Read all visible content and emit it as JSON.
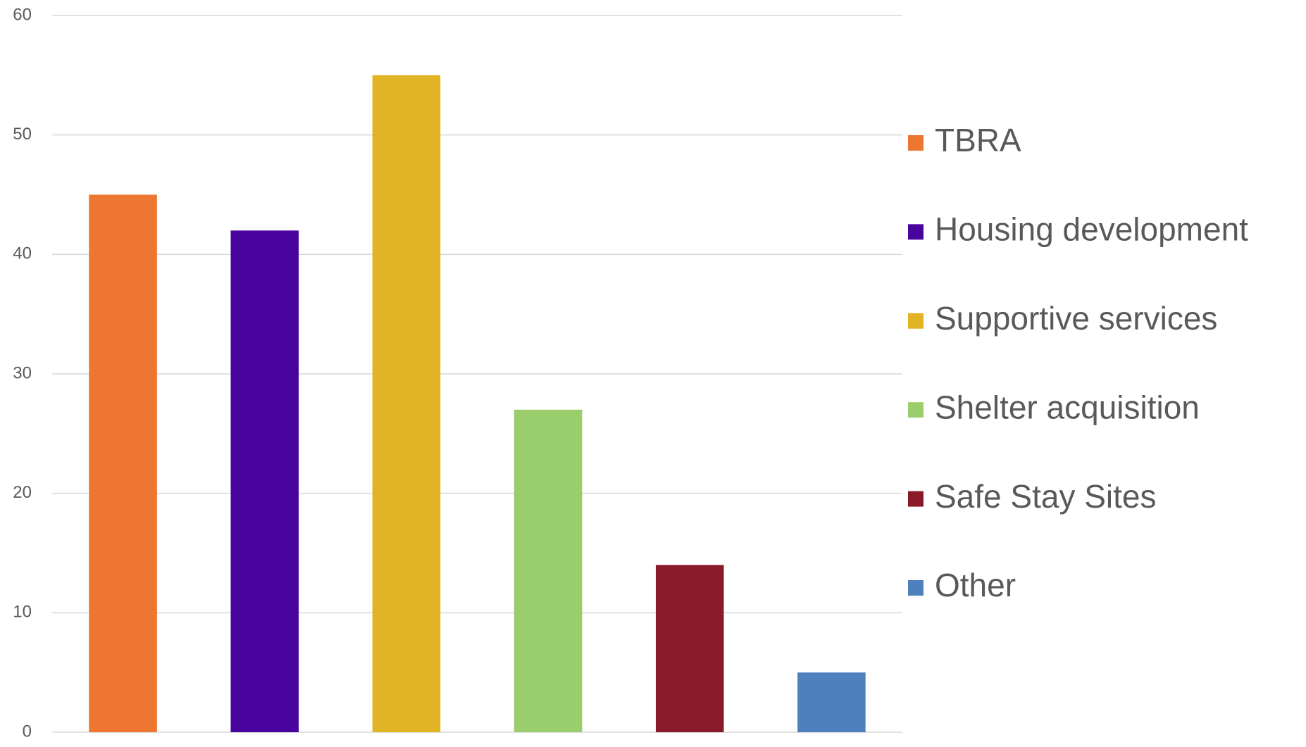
{
  "chart_data": {
    "type": "bar",
    "categories": [
      null
    ],
    "series": [
      {
        "name": "TBRA",
        "color": "#ed7730",
        "values": [
          45
        ]
      },
      {
        "name": "Housing development",
        "color": "#4a049e",
        "values": [
          42
        ]
      },
      {
        "name": "Supportive services",
        "color": "#e0b425",
        "values": [
          55
        ]
      },
      {
        "name": "Shelter acquisition",
        "color": "#9acd6b",
        "values": [
          27
        ]
      },
      {
        "name": "Safe Stay Sites",
        "color": "#881a2a",
        "values": [
          14
        ]
      },
      {
        "name": "Other",
        "color": "#4e80bd",
        "values": [
          5
        ]
      }
    ],
    "ylim": [
      0,
      60
    ],
    "yticks": [
      0,
      10,
      20,
      30,
      40,
      50,
      60
    ],
    "grid": true,
    "legend": "right"
  }
}
